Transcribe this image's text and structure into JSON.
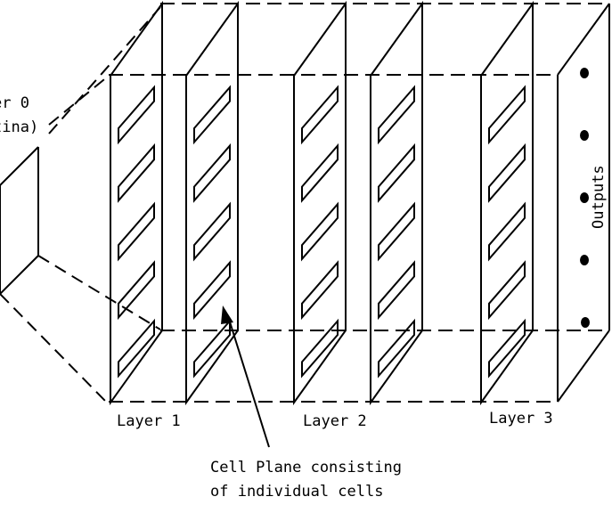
{
  "labels": {
    "layer0_line1": "er 0",
    "layer0_line2": "tina)",
    "layer1": "Layer 1",
    "layer2": "Layer 2",
    "layer3": "Layer 3",
    "outputs": "Outputs",
    "callout_line1": "Cell Plane consisting",
    "callout_line2": "of individual cells"
  },
  "diagram": {
    "layer_columns": 5,
    "cells_per_column": 5,
    "output_dots": 5
  }
}
